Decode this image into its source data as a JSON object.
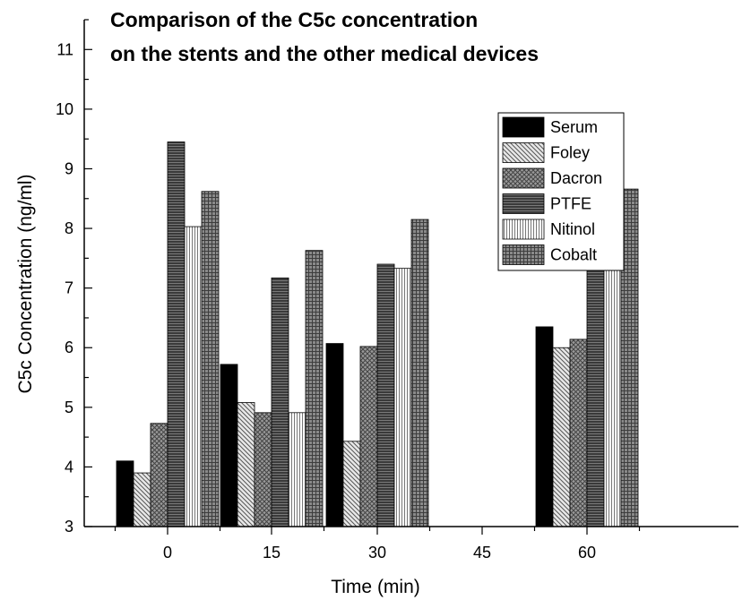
{
  "chart_data": {
    "type": "bar",
    "title": "Comparison of the C5c concentration",
    "subtitle": "on the stents and the other medical devices",
    "xlabel": "Time (min)",
    "ylabel": "C5c Concentration (ng/ml)",
    "categories": [
      "0",
      "15",
      "30",
      "45",
      "60"
    ],
    "ylim": [
      3,
      11.5
    ],
    "yticks": [
      "3",
      "4",
      "5",
      "6",
      "7",
      "8",
      "9",
      "10",
      "11"
    ],
    "grid": false,
    "legend_position": "top-right",
    "series": [
      {
        "name": "Serum",
        "pattern": "solid",
        "values": [
          4.1,
          5.72,
          6.07,
          null,
          6.35
        ]
      },
      {
        "name": "Foley",
        "pattern": "diag-light",
        "values": [
          3.9,
          5.08,
          4.43,
          null,
          6.0
        ]
      },
      {
        "name": "Dacron",
        "pattern": "crosshatch",
        "values": [
          4.73,
          4.91,
          6.02,
          null,
          6.14
        ]
      },
      {
        "name": "PTFE",
        "pattern": "dark-hlines",
        "values": [
          9.45,
          7.17,
          7.4,
          null,
          7.67
        ]
      },
      {
        "name": "Nitinol",
        "pattern": "vlines",
        "values": [
          8.03,
          4.91,
          7.33,
          null,
          8.15
        ]
      },
      {
        "name": "Cobalt",
        "pattern": "grid",
        "values": [
          8.62,
          7.63,
          8.15,
          null,
          8.66
        ]
      }
    ]
  }
}
